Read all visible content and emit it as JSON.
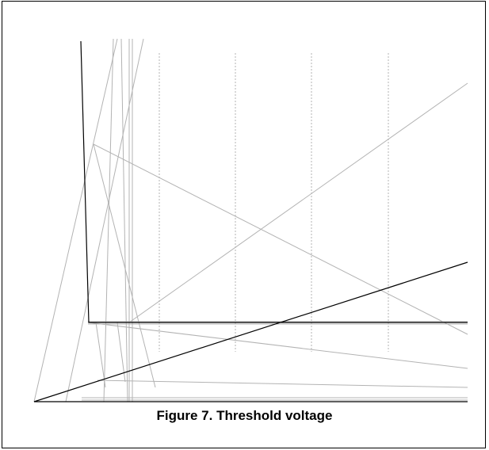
{
  "figure": {
    "caption": "Figure 7. Threshold voltage"
  },
  "colors": {
    "frame": "#000000",
    "axis_line": "#000000",
    "light_line": "#b3b3b3",
    "dotted_gridline": "#b3b3b3",
    "background": "#ffffff"
  }
}
